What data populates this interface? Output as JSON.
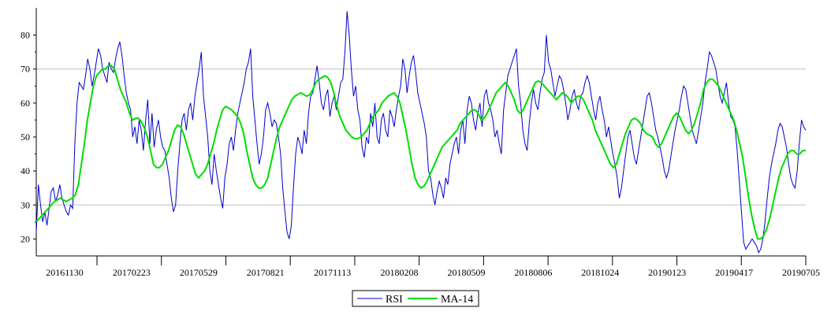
{
  "chart_data": {
    "type": "line",
    "title": "",
    "xlabel": "",
    "ylabel": "",
    "ylim": [
      15,
      88
    ],
    "yticks": [
      20,
      30,
      40,
      50,
      60,
      70,
      80
    ],
    "grid_lines_y": [
      30,
      70
    ],
    "legend_position": "bottom-center",
    "x_tick_labels": [
      "20161130",
      "20170223",
      "20170529",
      "20170821",
      "20171113",
      "20180208",
      "20180509",
      "20180806",
      "20181024",
      "20190123",
      "20190417",
      "20190705"
    ],
    "series": [
      {
        "name": "RSI",
        "color": "#0000cc",
        "values": [
          22,
          36,
          30,
          25,
          28,
          24,
          29,
          34,
          35,
          31,
          33,
          36,
          32,
          30,
          28,
          27,
          30,
          29,
          48,
          60,
          66,
          65,
          64,
          68,
          73,
          70,
          65,
          68,
          72,
          76,
          74,
          70,
          68,
          66,
          72,
          70,
          69,
          73,
          76,
          78,
          74,
          68,
          63,
          60,
          58,
          50,
          53,
          48,
          55,
          52,
          46,
          55,
          61,
          48,
          57,
          47,
          52,
          55,
          50,
          47,
          46,
          42,
          38,
          32,
          28,
          30,
          40,
          48,
          55,
          57,
          52,
          58,
          60,
          55,
          62,
          66,
          70,
          75,
          62,
          56,
          50,
          40,
          36,
          45,
          40,
          36,
          32,
          29,
          38,
          42,
          48,
          50,
          46,
          52,
          57,
          60,
          63,
          66,
          70,
          72,
          76,
          62,
          55,
          48,
          42,
          45,
          50,
          58,
          60,
          57,
          53,
          55,
          54,
          50,
          45,
          35,
          28,
          22,
          20,
          24,
          35,
          45,
          50,
          48,
          45,
          52,
          48,
          57,
          62,
          63,
          67,
          71,
          66,
          60,
          58,
          62,
          64,
          56,
          60,
          62,
          58,
          62,
          66,
          67,
          75,
          87,
          80,
          70,
          62,
          65,
          58,
          55,
          47,
          44,
          50,
          48,
          57,
          53,
          60,
          50,
          48,
          55,
          57,
          52,
          50,
          58,
          56,
          53,
          58,
          62,
          65,
          73,
          70,
          63,
          68,
          72,
          74,
          69,
          63,
          60,
          57,
          54,
          50,
          40,
          38,
          33,
          30,
          34,
          37,
          35,
          32,
          38,
          36,
          42,
          45,
          48,
          50,
          45,
          52,
          55,
          48,
          58,
          62,
          60,
          55,
          52,
          57,
          60,
          53,
          62,
          64,
          60,
          58,
          55,
          50,
          52,
          48,
          45,
          58,
          63,
          68,
          70,
          72,
          74,
          76,
          65,
          60,
          52,
          48,
          46,
          54,
          60,
          64,
          60,
          58,
          63,
          67,
          69,
          80,
          72,
          70,
          66,
          62,
          65,
          68,
          67,
          64,
          60,
          55,
          58,
          62,
          64,
          60,
          58,
          62,
          63,
          66,
          68,
          66,
          62,
          58,
          55,
          60,
          62,
          58,
          55,
          50,
          53,
          49,
          45,
          42,
          38,
          32,
          35,
          40,
          45,
          50,
          52,
          48,
          44,
          42,
          46,
          50,
          54,
          58,
          62,
          63,
          60,
          56,
          52,
          50,
          47,
          44,
          40,
          38,
          40,
          44,
          48,
          52,
          55,
          58,
          62,
          65,
          64,
          60,
          56,
          52,
          50,
          48,
          52,
          56,
          60,
          66,
          70,
          75,
          74,
          72,
          70,
          66,
          62,
          60,
          63,
          66,
          60,
          56,
          55,
          53,
          46,
          37,
          28,
          19,
          17,
          18,
          19,
          20,
          19,
          18,
          16,
          17,
          20,
          25,
          32,
          38,
          42,
          45,
          48,
          52,
          54,
          53,
          50,
          47,
          42,
          38,
          36,
          35,
          40,
          48,
          55,
          53,
          52
        ]
      },
      {
        "name": "MA-14",
        "color": "#00dd00",
        "values": [
          25,
          26,
          27,
          28,
          29,
          30,
          31,
          31.5,
          32,
          31.5,
          31,
          31.5,
          32,
          33,
          36,
          42,
          48,
          55,
          60,
          65,
          68,
          69,
          70,
          70,
          71,
          71,
          70,
          67,
          64,
          62,
          60,
          57,
          55,
          55.5,
          55.5,
          54.5,
          52.5,
          50,
          46,
          42,
          41,
          41,
          42,
          44,
          46,
          49,
          52,
          53.5,
          53,
          51,
          48,
          45,
          42,
          39,
          38,
          39,
          40,
          42,
          45,
          48,
          52,
          55,
          58,
          59,
          58.5,
          58,
          57,
          56,
          54,
          51,
          46,
          42,
          38,
          36,
          35,
          35,
          36,
          38,
          42,
          46,
          50,
          53,
          55,
          57,
          59,
          61,
          62,
          62.5,
          63,
          62.5,
          62,
          62.5,
          64,
          66,
          67,
          67.5,
          68,
          67.5,
          66,
          63,
          59,
          56,
          54,
          52,
          51,
          50,
          49.5,
          49.5,
          50,
          51,
          52,
          54,
          56,
          57,
          58,
          60,
          61,
          62,
          62.5,
          63,
          62,
          60,
          56,
          52,
          47,
          42,
          38,
          36,
          35,
          35.5,
          37,
          39,
          41,
          43,
          45,
          47,
          48,
          49,
          50,
          51,
          52,
          54,
          55,
          56,
          57,
          58,
          58,
          57,
          55,
          55.5,
          57,
          59,
          61,
          63,
          64,
          65,
          66,
          65,
          63,
          61,
          58,
          57,
          58,
          60,
          62,
          64,
          66,
          66.5,
          66,
          65,
          64,
          63,
          62,
          61,
          62,
          63,
          62.5,
          61.5,
          60,
          61,
          62,
          62,
          61,
          59,
          57,
          55,
          52,
          50,
          48,
          46,
          44,
          42,
          41,
          42,
          45,
          48,
          51,
          53,
          55,
          55.5,
          55,
          54,
          52,
          51,
          50.5,
          50,
          48,
          47,
          48,
          50,
          52,
          54,
          56,
          57,
          56,
          54,
          52,
          51,
          52,
          54,
          57,
          60,
          64,
          66,
          67,
          67,
          66,
          65,
          63,
          61,
          59,
          57,
          55,
          52,
          48,
          44,
          38,
          32,
          27,
          23,
          20,
          20,
          21,
          23,
          26,
          30,
          34,
          38,
          41,
          43,
          45,
          46,
          46,
          45,
          45,
          46,
          46
        ]
      }
    ]
  }
}
